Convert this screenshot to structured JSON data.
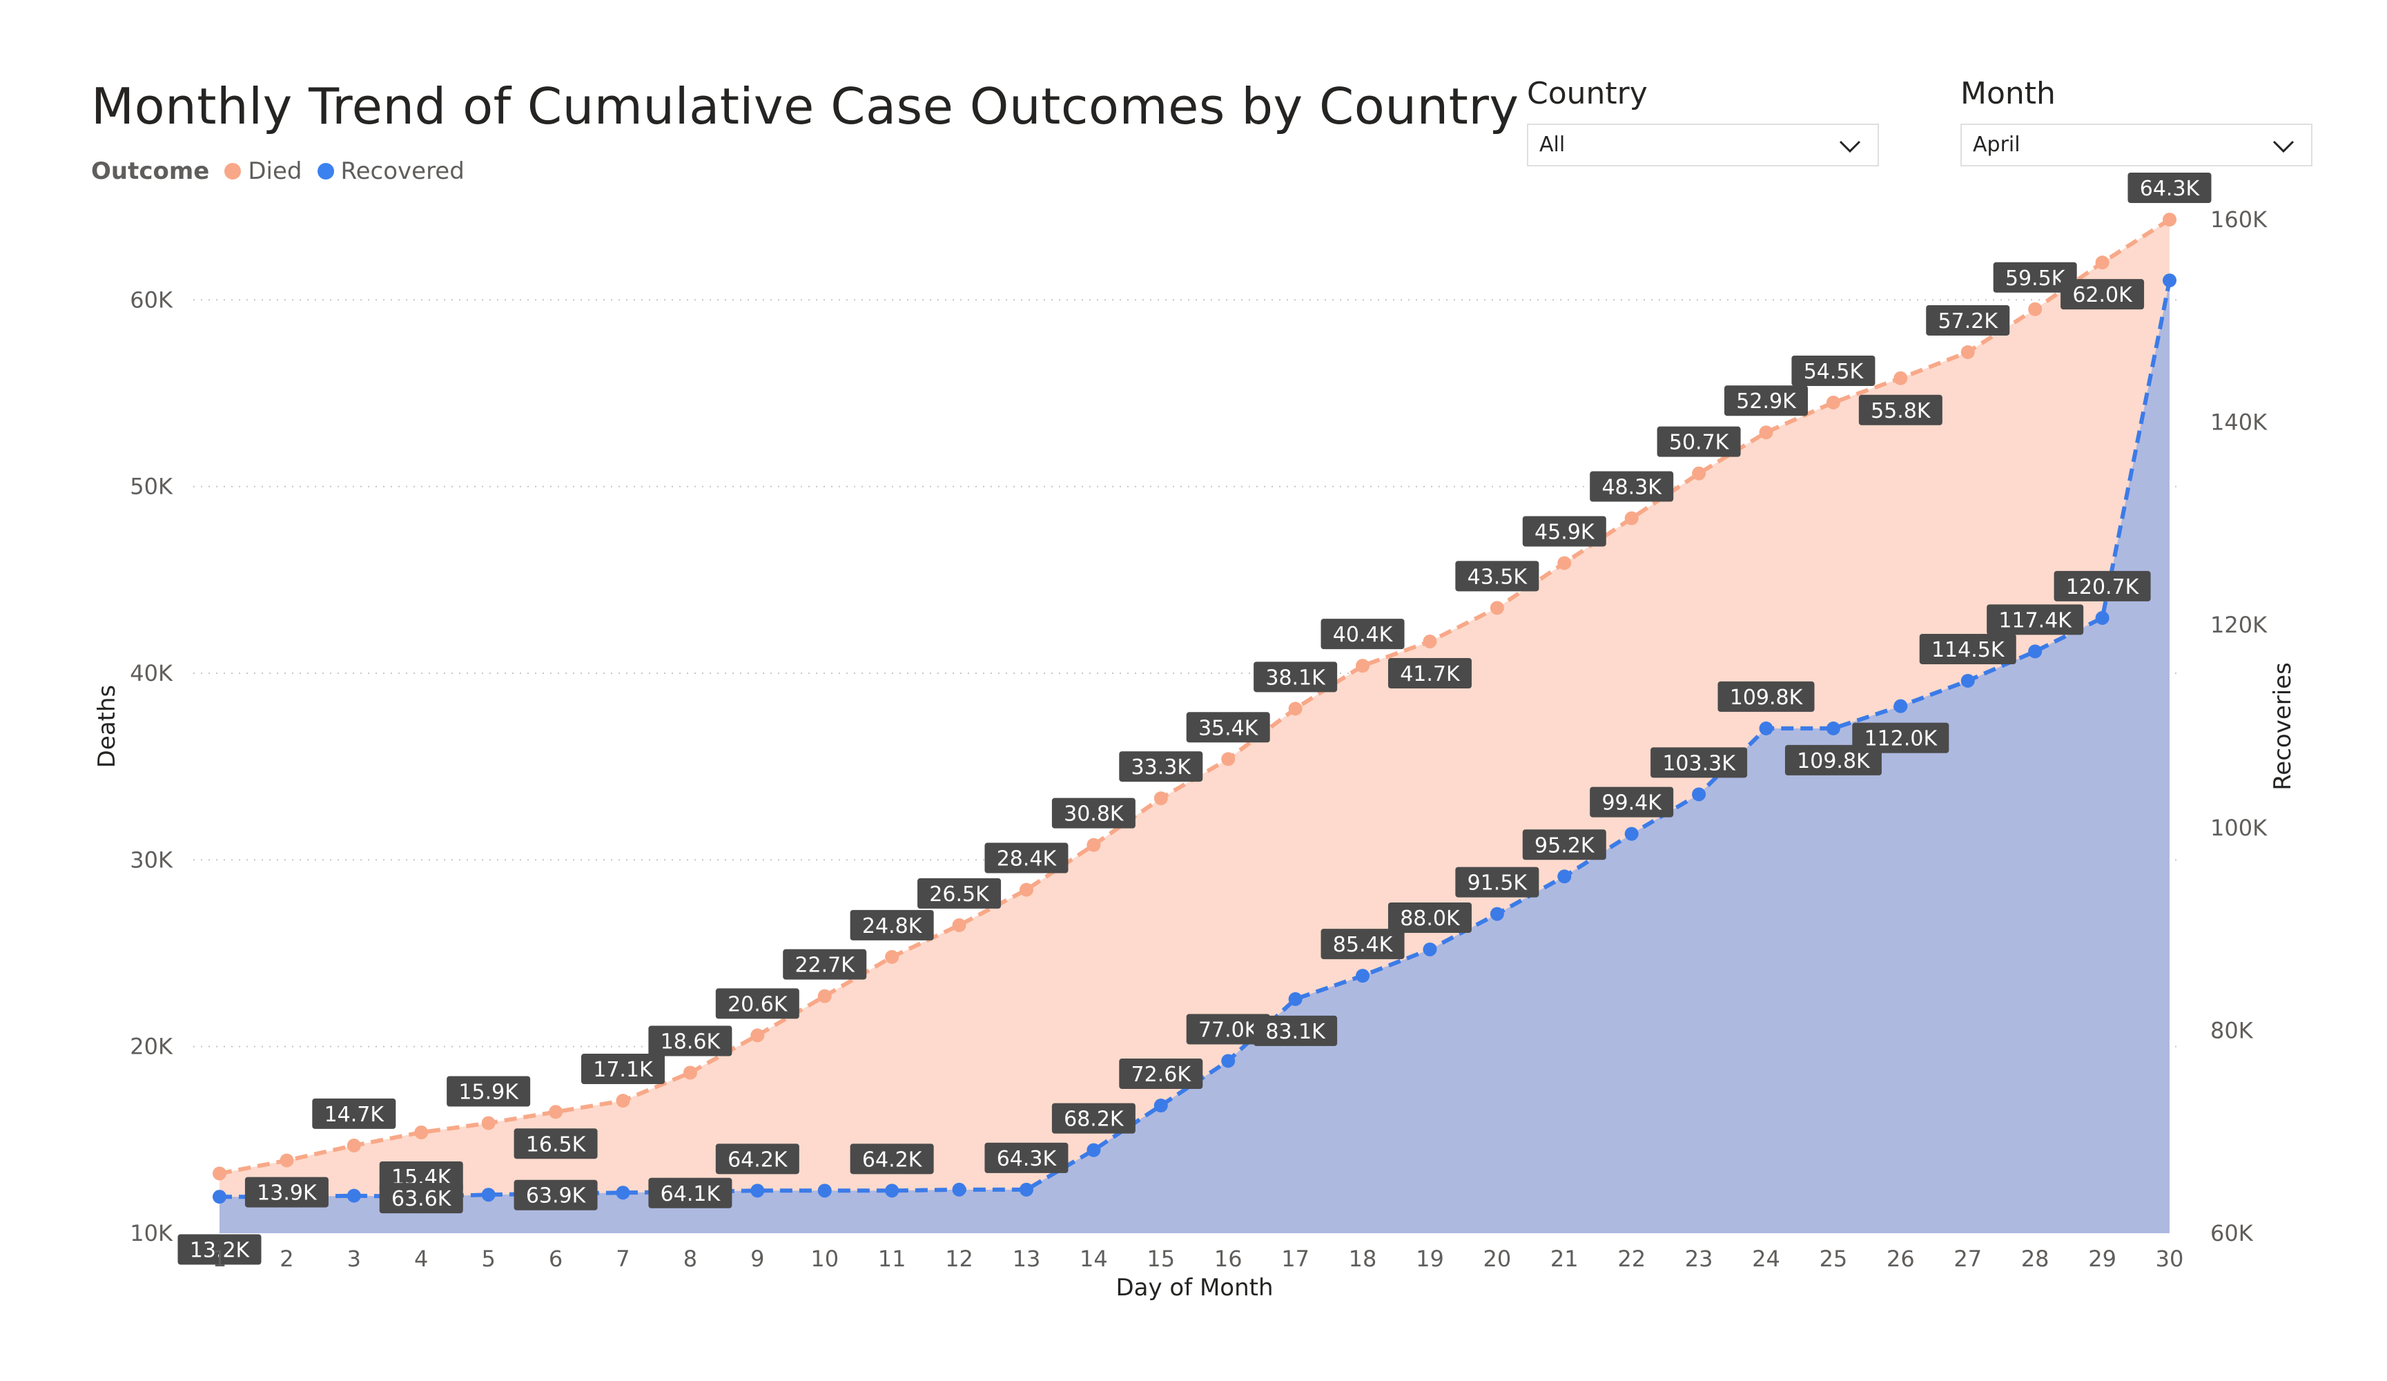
{
  "header": {
    "title": "Monthly Trend of Cumulative Case Outcomes by Country"
  },
  "legend": {
    "title": "Outcome",
    "items": [
      {
        "label": "Died",
        "color": "#f8a888"
      },
      {
        "label": "Recovered",
        "color": "#3b82f0"
      }
    ]
  },
  "filters": {
    "country": {
      "label": "Country",
      "value": "All"
    },
    "month": {
      "label": "Month",
      "value": "April"
    }
  },
  "colors": {
    "died_line": "#f8a888",
    "died_area": "#fddacd",
    "recovered_line": "#3b7be8",
    "recovered_area": "#aeb9e0",
    "label_bg": "#4a4a4a",
    "grid": "#c8c6c4"
  },
  "chart_data": {
    "type": "area",
    "title": "Monthly Trend of Cumulative Case Outcomes by Country",
    "xlabel": "Day of Month",
    "ylabel": "Deaths",
    "y2label": "Recoveries",
    "x": [
      1,
      2,
      3,
      4,
      5,
      6,
      7,
      8,
      9,
      10,
      11,
      12,
      13,
      14,
      15,
      16,
      17,
      18,
      19,
      20,
      21,
      22,
      23,
      24,
      25,
      26,
      27,
      28,
      29,
      30
    ],
    "ylim": [
      10000,
      64300
    ],
    "y2lim": [
      60000,
      160000
    ],
    "yticks": [
      "10K",
      "20K",
      "30K",
      "40K",
      "50K",
      "60K"
    ],
    "y2ticks": [
      "60K",
      "80K",
      "100K",
      "120K",
      "140K",
      "160K"
    ],
    "grid": true,
    "legend_position": "top-left",
    "series": [
      {
        "name": "Died",
        "axis": "left",
        "values": [
          13200,
          13900,
          14700,
          15400,
          15900,
          16500,
          17100,
          18600,
          20600,
          22700,
          24800,
          26500,
          28400,
          30800,
          33300,
          35400,
          38100,
          40400,
          41700,
          43500,
          45900,
          48300,
          50700,
          52900,
          54500,
          55800,
          57200,
          59500,
          62000,
          64300
        ],
        "labels": [
          "13.2K",
          "13.9K",
          "14.7K",
          "15.4K",
          "15.9K",
          "16.5K",
          "17.1K",
          "18.6K",
          "20.6K",
          "22.7K",
          "24.8K",
          "26.5K",
          "28.4K",
          "30.8K",
          "33.3K",
          "35.4K",
          "38.1K",
          "40.4K",
          "41.7K",
          "43.5K",
          "45.9K",
          "48.3K",
          "50.7K",
          "52.9K",
          "54.5K",
          "55.8K",
          "57.2K",
          "59.5K",
          "62.0K",
          "64.3K"
        ]
      },
      {
        "name": "Recovered",
        "axis": "right",
        "values": [
          63600,
          63600,
          63700,
          63600,
          63800,
          63900,
          64000,
          64100,
          64200,
          64200,
          64200,
          64300,
          64300,
          68200,
          72600,
          77000,
          83100,
          85400,
          88000,
          91500,
          95200,
          99400,
          103300,
          109800,
          109800,
          112000,
          114500,
          117400,
          120700,
          154000
        ],
        "labels": [
          "",
          "",
          "",
          "63.6K",
          "",
          "63.9K",
          "",
          "64.1K",
          "64.2K",
          "",
          "64.2K",
          "",
          "64.3K",
          "68.2K",
          "72.6K",
          "77.0K",
          "83.1K",
          "85.4K",
          "88.0K",
          "91.5K",
          "95.2K",
          "99.4K",
          "103.3K",
          "109.8K",
          "109.8K",
          "112.0K",
          "114.5K",
          "117.4K",
          "120.7K",
          ""
        ]
      }
    ]
  }
}
